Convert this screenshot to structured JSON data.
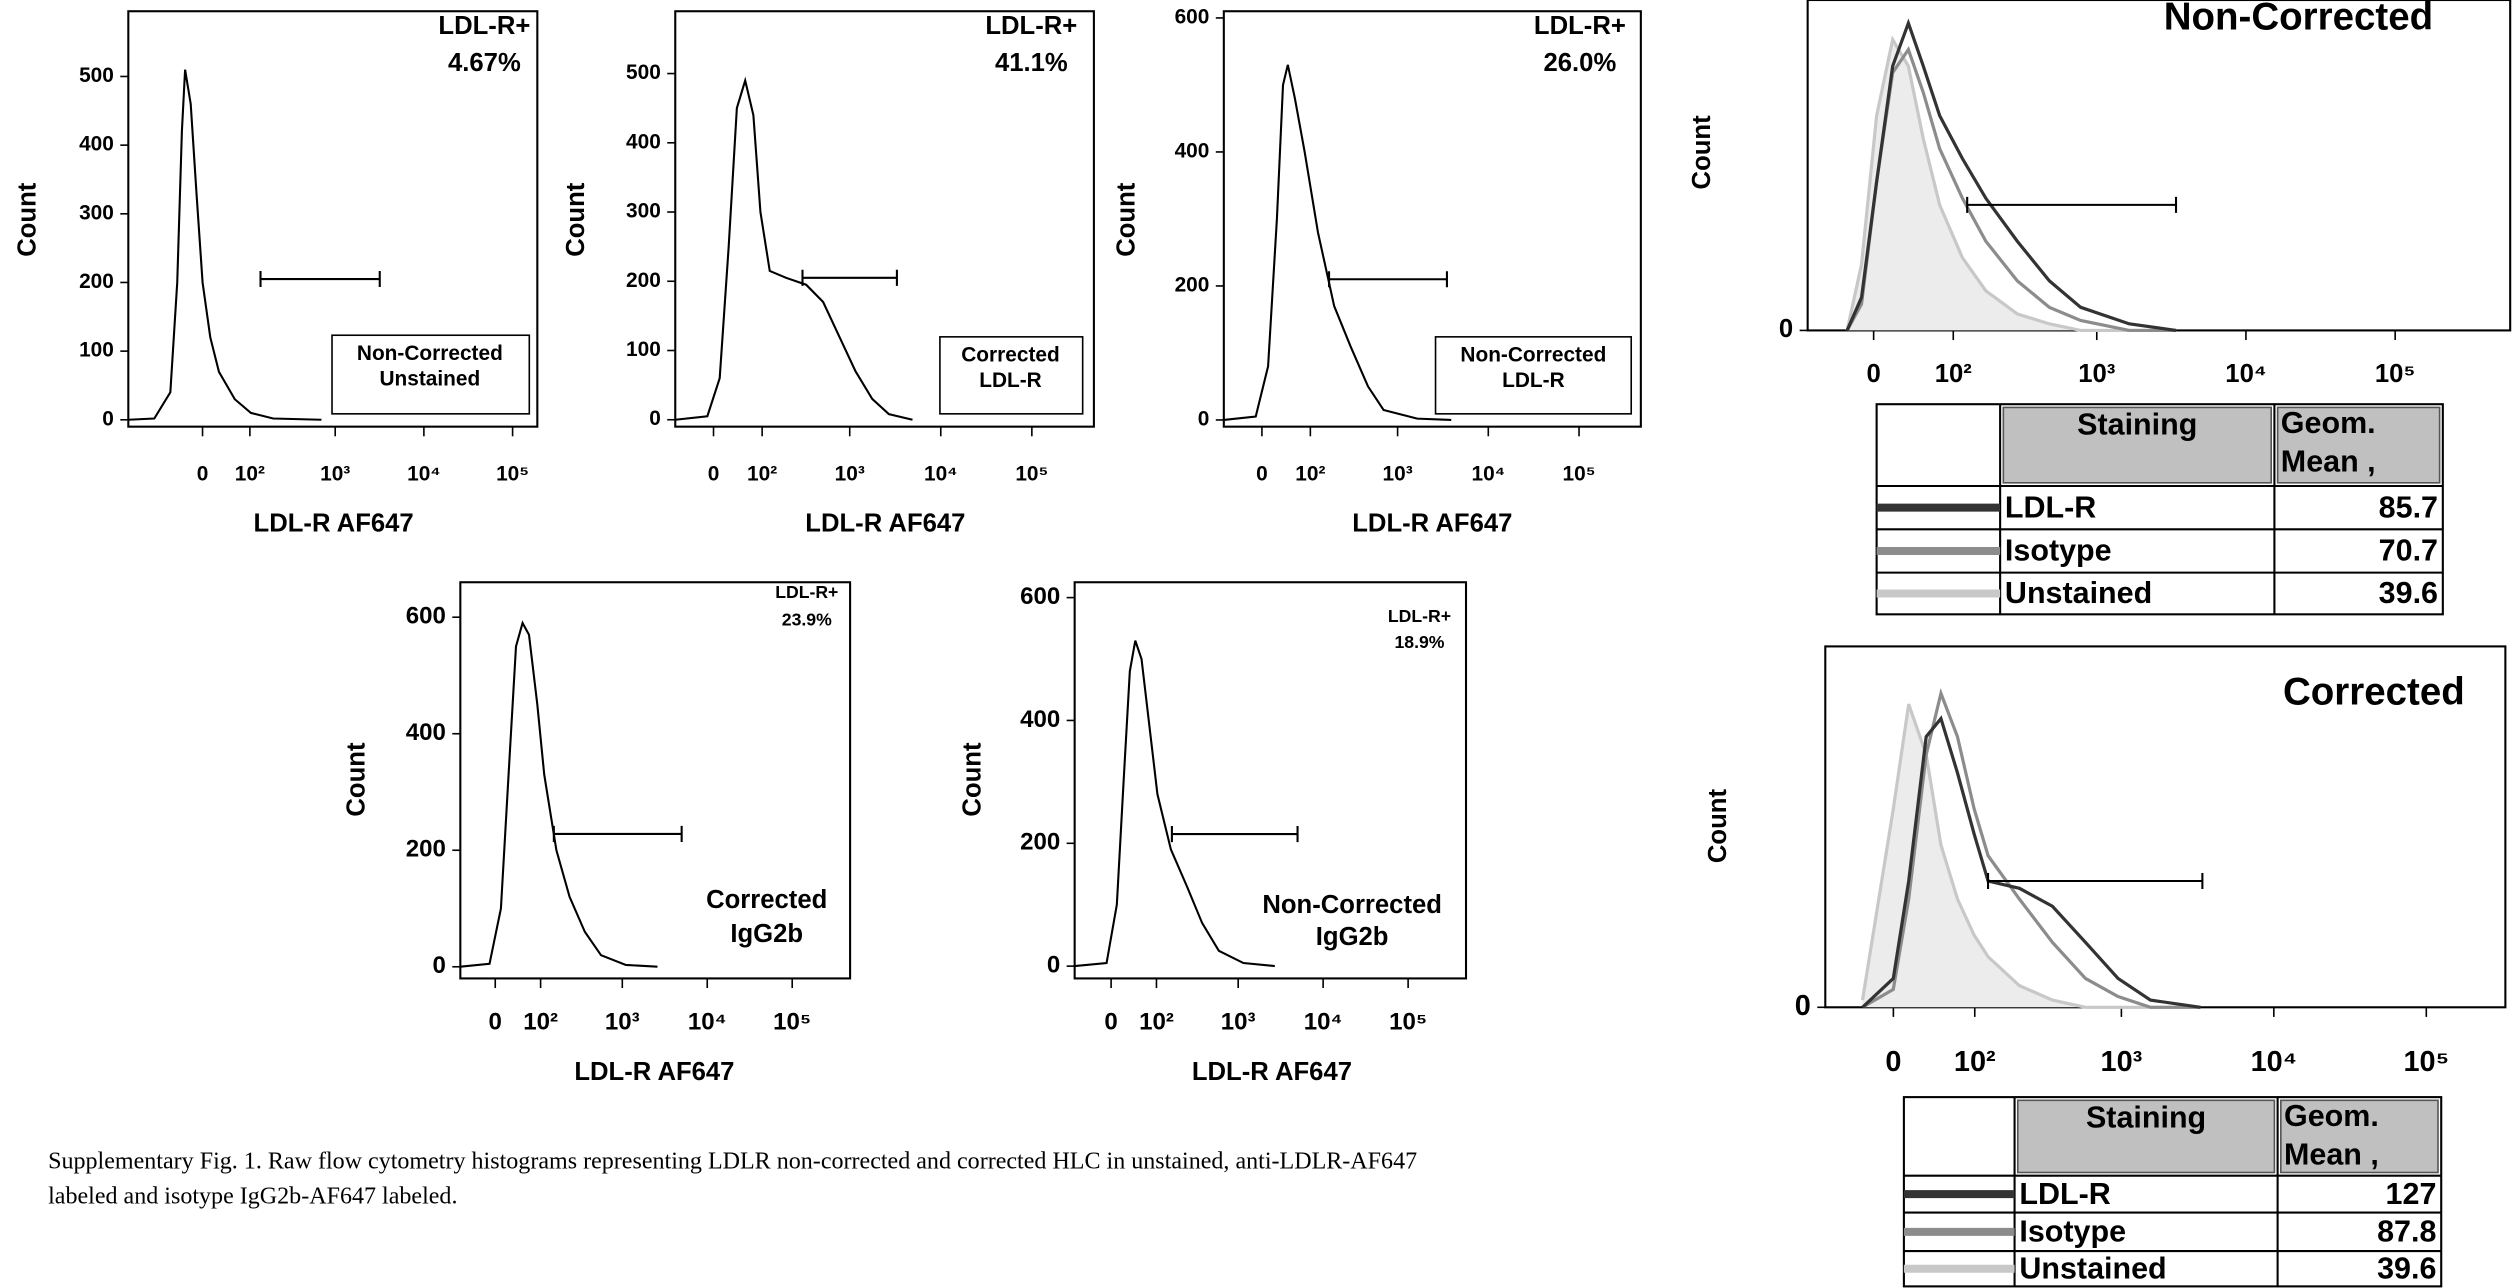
{
  "chart_data": [
    {
      "type": "line",
      "xscale": "logicle",
      "xlabel": "LDL-R AF647",
      "ylabel": "Count",
      "xlim": [
        -215,
        190000
      ],
      "xticks": [
        0,
        {
          "value": 100,
          "label": "10²"
        },
        {
          "value": 1000,
          "label": "10³"
        },
        {
          "value": 10000,
          "label": "10⁴"
        },
        {
          "value": 100000,
          "label": "10⁵"
        }
      ],
      "ylim": [
        -10,
        595
      ],
      "yticks": [
        0,
        100,
        200,
        300,
        400,
        500
      ],
      "x": [
        -215,
        -103,
        -60,
        -45,
        -36,
        -30,
        -20,
        -10,
        0,
        13,
        28,
        60,
        103,
        195,
        700
      ],
      "values": [
        0,
        2,
        40,
        200,
        420,
        510,
        460,
        330,
        200,
        120,
        70,
        30,
        10,
        2,
        0
      ],
      "color": "#000000",
      "gate": {
        "x": [
          137,
          3180
        ],
        "y": 205
      },
      "annotation": [
        "LDL-R+",
        "4.67%"
      ],
      "label": [
        "Non-Corrected",
        "Unstained"
      ],
      "label_boxed": true
    },
    {
      "type": "line",
      "xscale": "logicle",
      "xlabel": "LDL-R AF647",
      "ylabel": "Count",
      "xlim": [
        -72,
        480000
      ],
      "xticks": [
        0,
        {
          "value": 100,
          "label": "10²"
        },
        {
          "value": 1000,
          "label": "10³"
        },
        {
          "value": 10000,
          "label": "10⁴"
        },
        {
          "value": 100000,
          "label": "10⁵"
        }
      ],
      "ylim": [
        -10,
        590
      ],
      "yticks": [
        0,
        100,
        200,
        300,
        400,
        500
      ],
      "x": [
        -72,
        -10,
        10,
        25,
        40,
        57,
        76,
        95,
        125,
        195,
        330,
        510,
        770,
        1160,
        1770,
        2700,
        4900
      ],
      "values": [
        0,
        5,
        60,
        250,
        450,
        490,
        440,
        300,
        215,
        205,
        195,
        170,
        120,
        70,
        30,
        8,
        0
      ],
      "color": "#000000",
      "gate": {
        "x": [
          300,
          3300
        ],
        "y": 205
      },
      "annotation": [
        "LDL-R+",
        "41.1%"
      ],
      "label": [
        "Corrected",
        "LDL-R"
      ],
      "label_boxed": true
    },
    {
      "type": "line",
      "xscale": "logicle",
      "xlabel": "LDL-R AF647",
      "ylabel": "Count",
      "xlim": [
        -72,
        480000
      ],
      "xticks": [
        0,
        {
          "value": 100,
          "label": "10²"
        },
        {
          "value": 1000,
          "label": "10³"
        },
        {
          "value": 10000,
          "label": "10⁴"
        },
        {
          "value": 100000,
          "label": "10⁵"
        }
      ],
      "ylim": [
        -10,
        610
      ],
      "yticks": [
        0,
        200,
        400,
        600
      ],
      "x": [
        -72,
        -10,
        10,
        25,
        36,
        45,
        60,
        84,
        125,
        195,
        300,
        470,
        700,
        1650,
        3900
      ],
      "values": [
        0,
        5,
        80,
        300,
        500,
        530,
        480,
        400,
        280,
        170,
        110,
        50,
        15,
        2,
        0
      ],
      "color": "#000000",
      "gate": {
        "x": [
          170,
          3500
        ],
        "y": 210
      },
      "annotation": [
        "LDL-R+",
        "26.0%"
      ],
      "label": [
        "Non-Corrected",
        "LDL-R"
      ],
      "label_boxed": true
    },
    {
      "type": "line",
      "xscale": "logicle",
      "xlabel": "LDL-R AF647",
      "ylabel": "Count",
      "xlim": [
        -70,
        480000
      ],
      "xticks": [
        0,
        {
          "value": 100,
          "label": "10²"
        },
        {
          "value": 1000,
          "label": "10³"
        },
        {
          "value": 10000,
          "label": "10⁴"
        },
        {
          "value": 100000,
          "label": "10⁵"
        }
      ],
      "ylim": [
        -20,
        660
      ],
      "yticks": [
        0,
        200,
        400,
        600
      ],
      "x": [
        -70,
        -10,
        10,
        25,
        38,
        52,
        67,
        90,
        112,
        162,
        235,
        360,
        560,
        1100,
        2600
      ],
      "values": [
        0,
        5,
        100,
        350,
        550,
        590,
        570,
        450,
        330,
        200,
        120,
        60,
        20,
        3,
        0
      ],
      "color": "#000000",
      "gate": {
        "x": [
          150,
          5000
        ],
        "y": 228
      },
      "annotation": [
        "LDL-R+",
        "23.9%"
      ],
      "label": [
        "Corrected",
        "IgG2b"
      ],
      "label_boxed": false
    },
    {
      "type": "line",
      "xscale": "logicle",
      "xlabel": "LDL-R AF647",
      "ylabel": "Count",
      "xlim": [
        -74,
        480000
      ],
      "xticks": [
        0,
        {
          "value": 100,
          "label": "10²"
        },
        {
          "value": 1000,
          "label": "10³"
        },
        {
          "value": 10000,
          "label": "10⁴"
        },
        {
          "value": 100000,
          "label": "10⁵"
        }
      ],
      "ylim": [
        -20,
        625
      ],
      "yticks": [
        0,
        200,
        400,
        600
      ],
      "x": [
        -74,
        -8,
        10,
        22,
        34,
        45,
        59,
        77,
        103,
        155,
        245,
        375,
        590,
        1150,
        2700
      ],
      "values": [
        0,
        5,
        100,
        300,
        480,
        530,
        500,
        400,
        280,
        190,
        130,
        70,
        25,
        5,
        0
      ],
      "color": "#000000",
      "gate": {
        "x": [
          160,
          5000
        ],
        "y": 215
      },
      "annotation": [
        "LDL-R+",
        "18.9%"
      ],
      "label": [
        "Non-Corrected",
        "IgG2b"
      ],
      "label_boxed": false
    },
    {
      "type": "line",
      "xscale": "logicle",
      "title": "Non-Corrected",
      "ylabel": "Count",
      "xlim": [
        -77,
        590000
      ],
      "xticks": [
        0,
        {
          "value": 100,
          "label": "10²"
        },
        {
          "value": 1000,
          "label": "10³"
        },
        {
          "value": 10000,
          "label": "10⁴"
        },
        {
          "value": 100000,
          "label": "10⁵"
        }
      ],
      "ylim": [
        0,
        100
      ],
      "yticks": [
        0
      ],
      "x": [
        -27,
        -12,
        3,
        19,
        36,
        54,
        77,
        118,
        175,
        290,
        480,
        780,
        1650,
        3400
      ],
      "series": [
        {
          "name": "LDL-R",
          "color": "#333333",
          "values": [
            0,
            10,
            45,
            80,
            93,
            80,
            65,
            52,
            40,
            27,
            15,
            7,
            2,
            0
          ],
          "geom_mean": 85.7
        },
        {
          "name": "Isotype",
          "color": "#8c8c8c",
          "values": [
            0,
            8,
            45,
            78,
            85,
            72,
            55,
            40,
            27,
            15,
            7,
            3,
            0,
            0
          ],
          "geom_mean": 70.7
        },
        {
          "name": "Unstained",
          "color": "#c8c8c8",
          "values": [
            0,
            20,
            65,
            88,
            80,
            58,
            38,
            22,
            12,
            5,
            2,
            0,
            0,
            0
          ],
          "geom_mean": 39.6,
          "filled": true
        }
      ],
      "gate": {
        "x": [
          128,
          3400
        ],
        "y": 38
      },
      "table_header": {
        "staining": "Staining",
        "mean": [
          "Geom.",
          "Mean ,"
        ]
      }
    },
    {
      "type": "line",
      "xscale": "logicle",
      "title": "Corrected",
      "ylabel": "Count",
      "xlim": [
        -78,
        330000
      ],
      "xticks": [
        0,
        {
          "value": 100,
          "label": "10²"
        },
        {
          "value": 1000,
          "label": "10³"
        },
        {
          "value": 10000,
          "label": "10⁴"
        },
        {
          "value": 100000,
          "label": "10⁵"
        }
      ],
      "ylim": [
        0,
        100
      ],
      "yticks": [
        0
      ],
      "x": [
        -31,
        0,
        15,
        33,
        50,
        72,
        99,
        126,
        210,
        350,
        580,
        950,
        1550,
        3300
      ],
      "series": [
        {
          "name": "LDL-R",
          "color": "#333333",
          "values": [
            0,
            8,
            35,
            75,
            80,
            65,
            48,
            35,
            33,
            28,
            18,
            8,
            2,
            0
          ],
          "geom_mean": 127
        },
        {
          "name": "Isotype",
          "color": "#8c8c8c",
          "values": [
            0,
            5,
            30,
            70,
            87,
            75,
            55,
            42,
            30,
            18,
            8,
            3,
            0,
            0
          ],
          "geom_mean": 87.8
        },
        {
          "name": "Unstained",
          "color": "#c8c8c8",
          "values": [
            2,
            55,
            84,
            70,
            45,
            30,
            20,
            14,
            6,
            2,
            0,
            0,
            0,
            0
          ],
          "geom_mean": 39.6,
          "filled": true
        }
      ],
      "gate": {
        "x": [
          126,
          3400
        ],
        "y": 35
      },
      "table_header": {
        "staining": "Staining",
        "mean": [
          "Geom.",
          "Mean ,"
        ]
      }
    }
  ],
  "caption": [
    "Supplementary Fig. 1. Raw flow cytometry histograms representing LDLR non-corrected and corrected HLC in unstained, anti-LDLR-AF647",
    "labeled and isotype IgG2b-AF647 labeled."
  ]
}
